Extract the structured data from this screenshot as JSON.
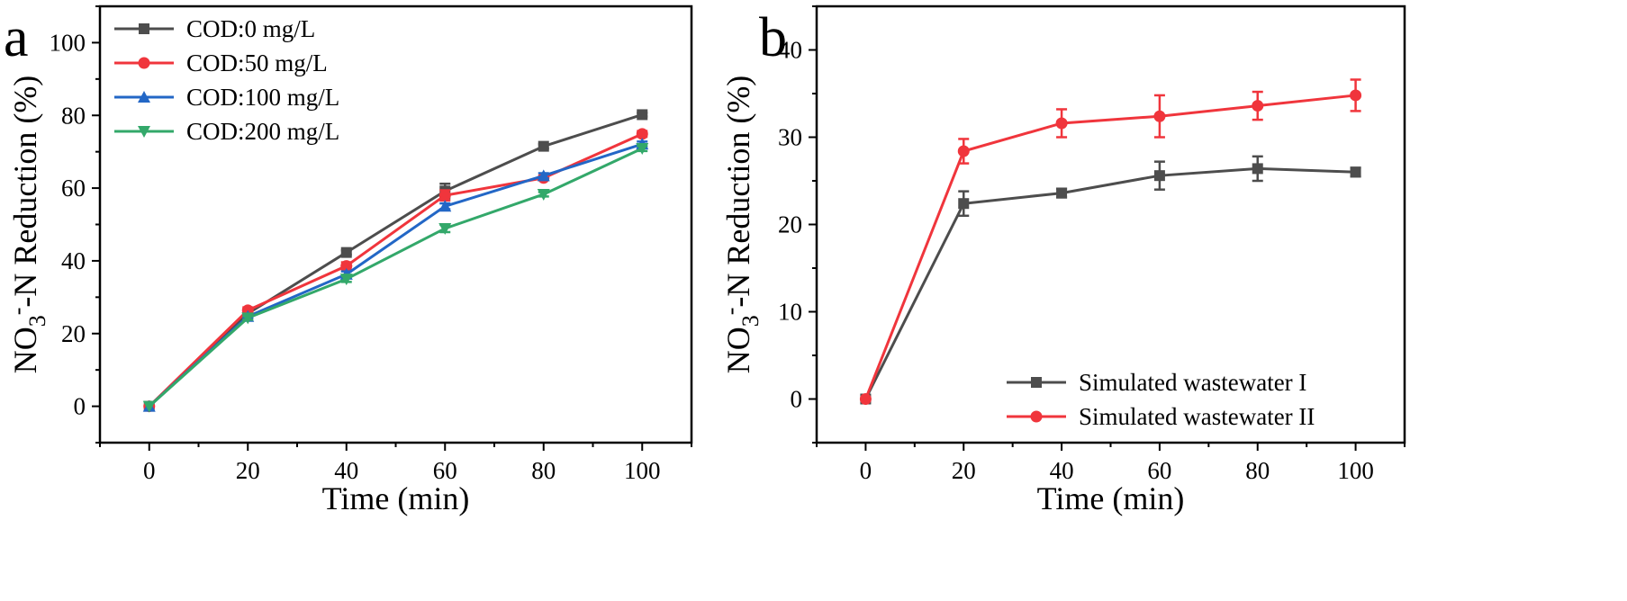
{
  "chart_data": [
    {
      "panel": "a",
      "type": "line",
      "xlabel": "Time (min)",
      "ylabel_parts": [
        "NO",
        "3",
        "-",
        "-N Reduction  (%)"
      ],
      "x": [
        0,
        20,
        40,
        60,
        80,
        100
      ],
      "xlim": [
        -10,
        110
      ],
      "ylim": [
        -10,
        110
      ],
      "xticks": [
        "0",
        "20",
        "40",
        "60",
        "80",
        "100"
      ],
      "yticks": [
        "0",
        "20",
        "40",
        "60",
        "80",
        "100"
      ],
      "legend_position": "top-left",
      "series": [
        {
          "name": "COD:0 mg/L",
          "color": "#4d4d4d",
          "marker": "square",
          "values": [
            0,
            25.5,
            42.3,
            59.2,
            71.5,
            80.2
          ],
          "errors": [
            0,
            0.5,
            0.6,
            2.0,
            0.6,
            0.5
          ]
        },
        {
          "name": "COD:50 mg/L",
          "color": "#f0353c",
          "marker": "circle",
          "values": [
            0,
            26.4,
            38.6,
            58.0,
            62.8,
            74.9
          ],
          "errors": [
            0,
            0.8,
            1.0,
            1.4,
            0.6,
            0.8
          ]
        },
        {
          "name": "COD:100 mg/L",
          "color": "#2367c6",
          "marker": "triangle-up",
          "values": [
            0,
            24.7,
            36.3,
            55.0,
            63.4,
            72.1
          ],
          "errors": [
            0,
            0.5,
            0.8,
            0.8,
            0.7,
            0.7
          ]
        },
        {
          "name": "COD:200 mg/L",
          "color": "#33a86a",
          "marker": "triangle-down",
          "values": [
            0,
            24.3,
            35.0,
            48.9,
            58.3,
            70.9
          ],
          "errors": [
            0,
            0.5,
            0.8,
            1.0,
            0.6,
            0.7
          ]
        }
      ]
    },
    {
      "panel": "b",
      "type": "line",
      "xlabel": "Time (min)",
      "ylabel_parts": [
        "NO",
        "3",
        "-",
        "-N Reduction  (%)"
      ],
      "x": [
        0,
        20,
        40,
        60,
        80,
        100
      ],
      "xlim": [
        -10,
        110
      ],
      "ylim": [
        -5,
        45
      ],
      "xticks": [
        "0",
        "20",
        "40",
        "60",
        "80",
        "100"
      ],
      "yticks": [
        "0",
        "10",
        "20",
        "30",
        "40"
      ],
      "legend_position": "bottom-right",
      "series": [
        {
          "name": "Simulated wastewater I",
          "color": "#4d4d4d",
          "marker": "square",
          "values": [
            0,
            22.4,
            23.6,
            25.6,
            26.4,
            26.0
          ],
          "errors": [
            0,
            1.4,
            0.5,
            1.6,
            1.4,
            0.5
          ]
        },
        {
          "name": "Simulated wastewater II",
          "color": "#f0353c",
          "marker": "circle",
          "values": [
            0,
            28.4,
            31.6,
            32.4,
            33.6,
            34.8
          ],
          "errors": [
            0,
            1.4,
            1.6,
            2.4,
            1.6,
            1.8
          ]
        }
      ]
    }
  ]
}
